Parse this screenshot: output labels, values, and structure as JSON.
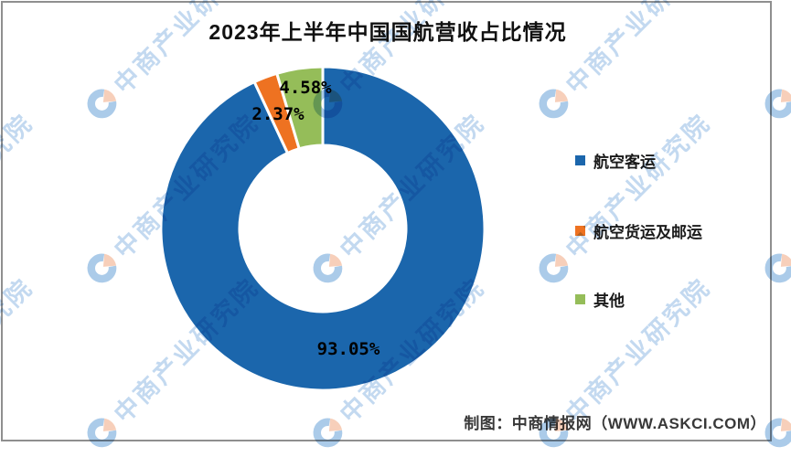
{
  "title": "2023年上半年中国国航营收占比情况",
  "watermark": {
    "text": "中商产业研究院"
  },
  "legend": {
    "items": [
      {
        "label": "航空客运",
        "color": "#1B66AC"
      },
      {
        "label": "航空货运及邮运",
        "color": "#EE7221"
      },
      {
        "label": "其他",
        "color": "#95BD59"
      }
    ]
  },
  "footer": {
    "credit": "制图：中商情报网（WWW.ASKCI.COM）"
  },
  "chart_data": {
    "type": "pie",
    "subtype": "donut",
    "title": "2023年上半年中国国航营收占比情况",
    "categories": [
      "航空客运",
      "航空货运及邮运",
      "其他"
    ],
    "values": [
      93.05,
      2.37,
      4.58
    ],
    "labels": [
      "93.05%",
      "2.37%",
      "4.58%"
    ],
    "colors": [
      "#1B66AC",
      "#EE7221",
      "#95BD59"
    ],
    "unit": "%",
    "start_angle_deg": 0,
    "direction": "clockwise",
    "inner_radius_ratio": 0.5,
    "slice_gap_color": "#FFFFFF",
    "legend_position": "right"
  }
}
